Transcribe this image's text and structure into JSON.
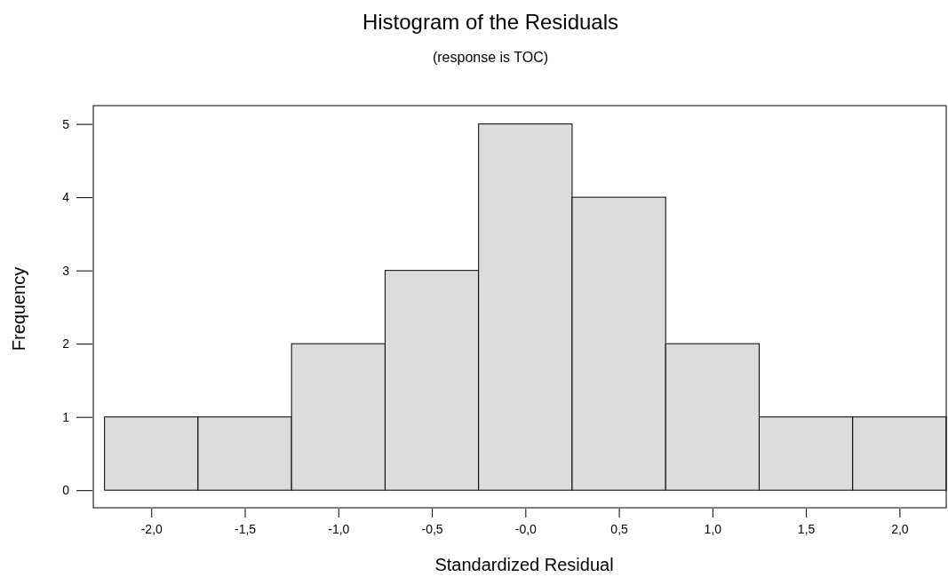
{
  "chart_data": {
    "type": "histogram",
    "title": "Histogram of the Residuals",
    "subtitle": "(response is TOC)",
    "xlabel": "Standardized Residual",
    "ylabel": "Frequency",
    "bins": [
      -2.25,
      -1.75,
      -1.25,
      -0.75,
      -0.25,
      0.25,
      0.75,
      1.25,
      1.75,
      2.25
    ],
    "values": [
      1,
      1,
      2,
      3,
      5,
      4,
      2,
      1,
      1
    ],
    "color": "#dcdcdc",
    "xlim": [
      -2.31,
      2.25
    ],
    "ylim": [
      -0.24,
      5.25
    ],
    "xticks": [
      {
        "value": -2,
        "label": "-2,0"
      },
      {
        "value": -1.5,
        "label": "-1,5"
      },
      {
        "value": -1,
        "label": "-1,0"
      },
      {
        "value": -0.5,
        "label": "-0,5"
      },
      {
        "value": 0,
        "label": "-0,0"
      },
      {
        "value": 0.5,
        "label": "0,5"
      },
      {
        "value": 1,
        "label": "1,0"
      },
      {
        "value": 1.5,
        "label": "1,5"
      },
      {
        "value": 2,
        "label": "2,0"
      }
    ],
    "yticks": [
      0,
      1,
      2,
      3,
      4,
      5
    ],
    "grid": false
  }
}
